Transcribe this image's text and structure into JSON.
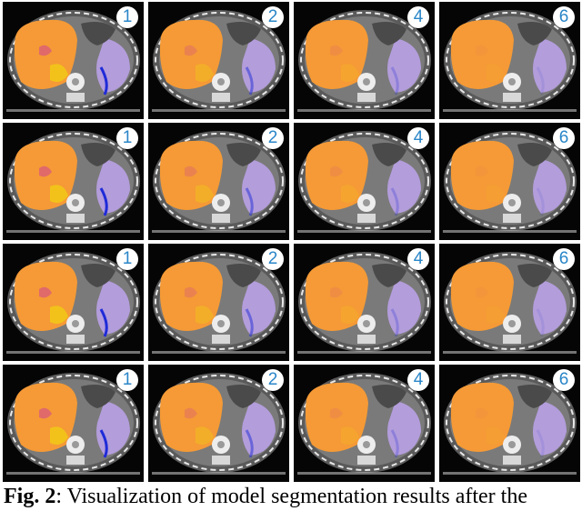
{
  "figure": {
    "columns": [
      "1",
      "2",
      "4",
      "6"
    ],
    "rows": [
      {
        "cells": [
          {
            "label": "1"
          },
          {
            "label": "2"
          },
          {
            "label": "4"
          },
          {
            "label": "6"
          }
        ]
      },
      {
        "cells": [
          {
            "label": "1"
          },
          {
            "label": "2"
          },
          {
            "label": "4"
          },
          {
            "label": "6"
          }
        ]
      },
      {
        "cells": [
          {
            "label": "1"
          },
          {
            "label": "2"
          },
          {
            "label": "4"
          },
          {
            "label": "6"
          }
        ]
      },
      {
        "cells": [
          {
            "label": "1"
          },
          {
            "label": "2"
          },
          {
            "label": "4"
          },
          {
            "label": "6"
          }
        ]
      }
    ],
    "colors": {
      "liver": "#f59a36",
      "spleen": "#b39ddb",
      "stomach_error": "#f2c21b",
      "kidney_error": "#e06a6a",
      "boundary_error": "#1f2bd8",
      "badge_text": "#2a86c8"
    }
  },
  "caption": {
    "label": "Fig. 2",
    "text": ": Visualization of model segmentation results after the"
  }
}
